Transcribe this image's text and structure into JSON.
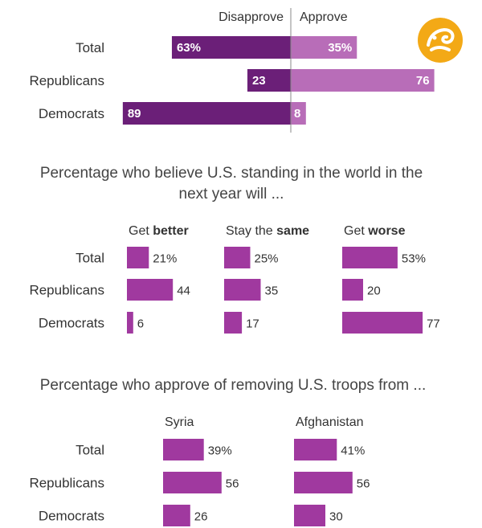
{
  "colors": {
    "disapprove": "#6b1f78",
    "approve": "#b86db8",
    "bar": "#a0399f",
    "divider": "#888888",
    "logo": "#f3a916"
  },
  "logo": {
    "name": "orange-logo-icon"
  },
  "chart_data": [
    {
      "type": "bar",
      "subtype": "diverging",
      "title": "",
      "legend": [
        "Disapprove",
        "Approve"
      ],
      "categories": [
        "Total",
        "Republicans",
        "Democrats"
      ],
      "series": [
        {
          "name": "Disapprove",
          "values": [
            63,
            23,
            89
          ],
          "labels": [
            "63%",
            "23",
            "89"
          ]
        },
        {
          "name": "Approve",
          "values": [
            35,
            76,
            8
          ],
          "labels": [
            "35%",
            "76",
            "8"
          ]
        }
      ]
    },
    {
      "type": "bar",
      "title_lines": [
        "Percentage who believe U.S. standing in the world in the",
        "next year will ..."
      ],
      "categories": [
        "Total",
        "Republicans",
        "Democrats"
      ],
      "series": [
        {
          "name_prefix": "Get ",
          "name_bold": "better",
          "values": [
            21,
            44,
            6
          ],
          "labels": [
            "21%",
            "44",
            "6"
          ]
        },
        {
          "name_prefix": "Stay the ",
          "name_bold": "same",
          "values": [
            25,
            35,
            17
          ],
          "labels": [
            "25%",
            "35",
            "17"
          ]
        },
        {
          "name_prefix": "Get ",
          "name_bold": "worse",
          "values": [
            53,
            20,
            77
          ],
          "labels": [
            "53%",
            "20",
            "77"
          ]
        }
      ]
    },
    {
      "type": "bar",
      "title_lines": [
        "Percentage who approve of removing U.S. troops from ..."
      ],
      "categories": [
        "Total",
        "Republicans",
        "Democrats"
      ],
      "series": [
        {
          "name_prefix": "",
          "name_bold": "",
          "name": "Syria",
          "values": [
            39,
            56,
            26
          ],
          "labels": [
            "39%",
            "56",
            "26"
          ]
        },
        {
          "name_prefix": "",
          "name_bold": "",
          "name": "Afghanistan",
          "values": [
            41,
            56,
            30
          ],
          "labels": [
            "41%",
            "56",
            "30"
          ]
        }
      ]
    }
  ]
}
